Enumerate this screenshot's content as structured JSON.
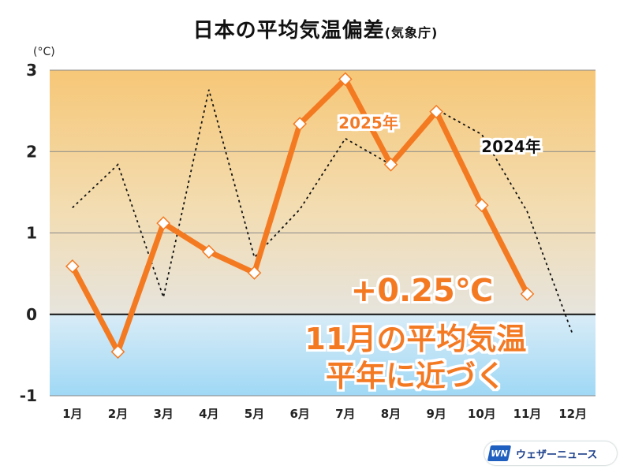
{
  "title": {
    "main": "日本の平均気温偏差",
    "sub": "(気象庁)"
  },
  "chart_data": {
    "type": "line",
    "unit": "(°C)",
    "categories": [
      "1月",
      "2月",
      "3月",
      "4月",
      "5月",
      "6月",
      "7月",
      "8月",
      "9月",
      "10月",
      "11月",
      "12月"
    ],
    "ylim": [
      -1,
      3
    ],
    "yticks": [
      "3",
      "2",
      "1",
      "0",
      "-1"
    ],
    "series": [
      {
        "name": "2025年",
        "values": [
          0.59,
          -0.46,
          1.12,
          0.77,
          0.51,
          2.34,
          2.89,
          1.84,
          2.49,
          1.34,
          0.25,
          null
        ],
        "color": "#f47a22"
      },
      {
        "name": "2024年",
        "values": [
          1.31,
          1.84,
          0.21,
          2.76,
          0.7,
          1.29,
          2.16,
          1.84,
          2.52,
          2.21,
          1.26,
          -0.25
        ],
        "color": "#111111"
      }
    ],
    "annotations": {
      "value": "+0.25℃",
      "line1": "11月の平均気温",
      "line2": "平年に近づく"
    }
  },
  "brand": {
    "mark": "WN",
    "name": "ウェザーニュース"
  }
}
